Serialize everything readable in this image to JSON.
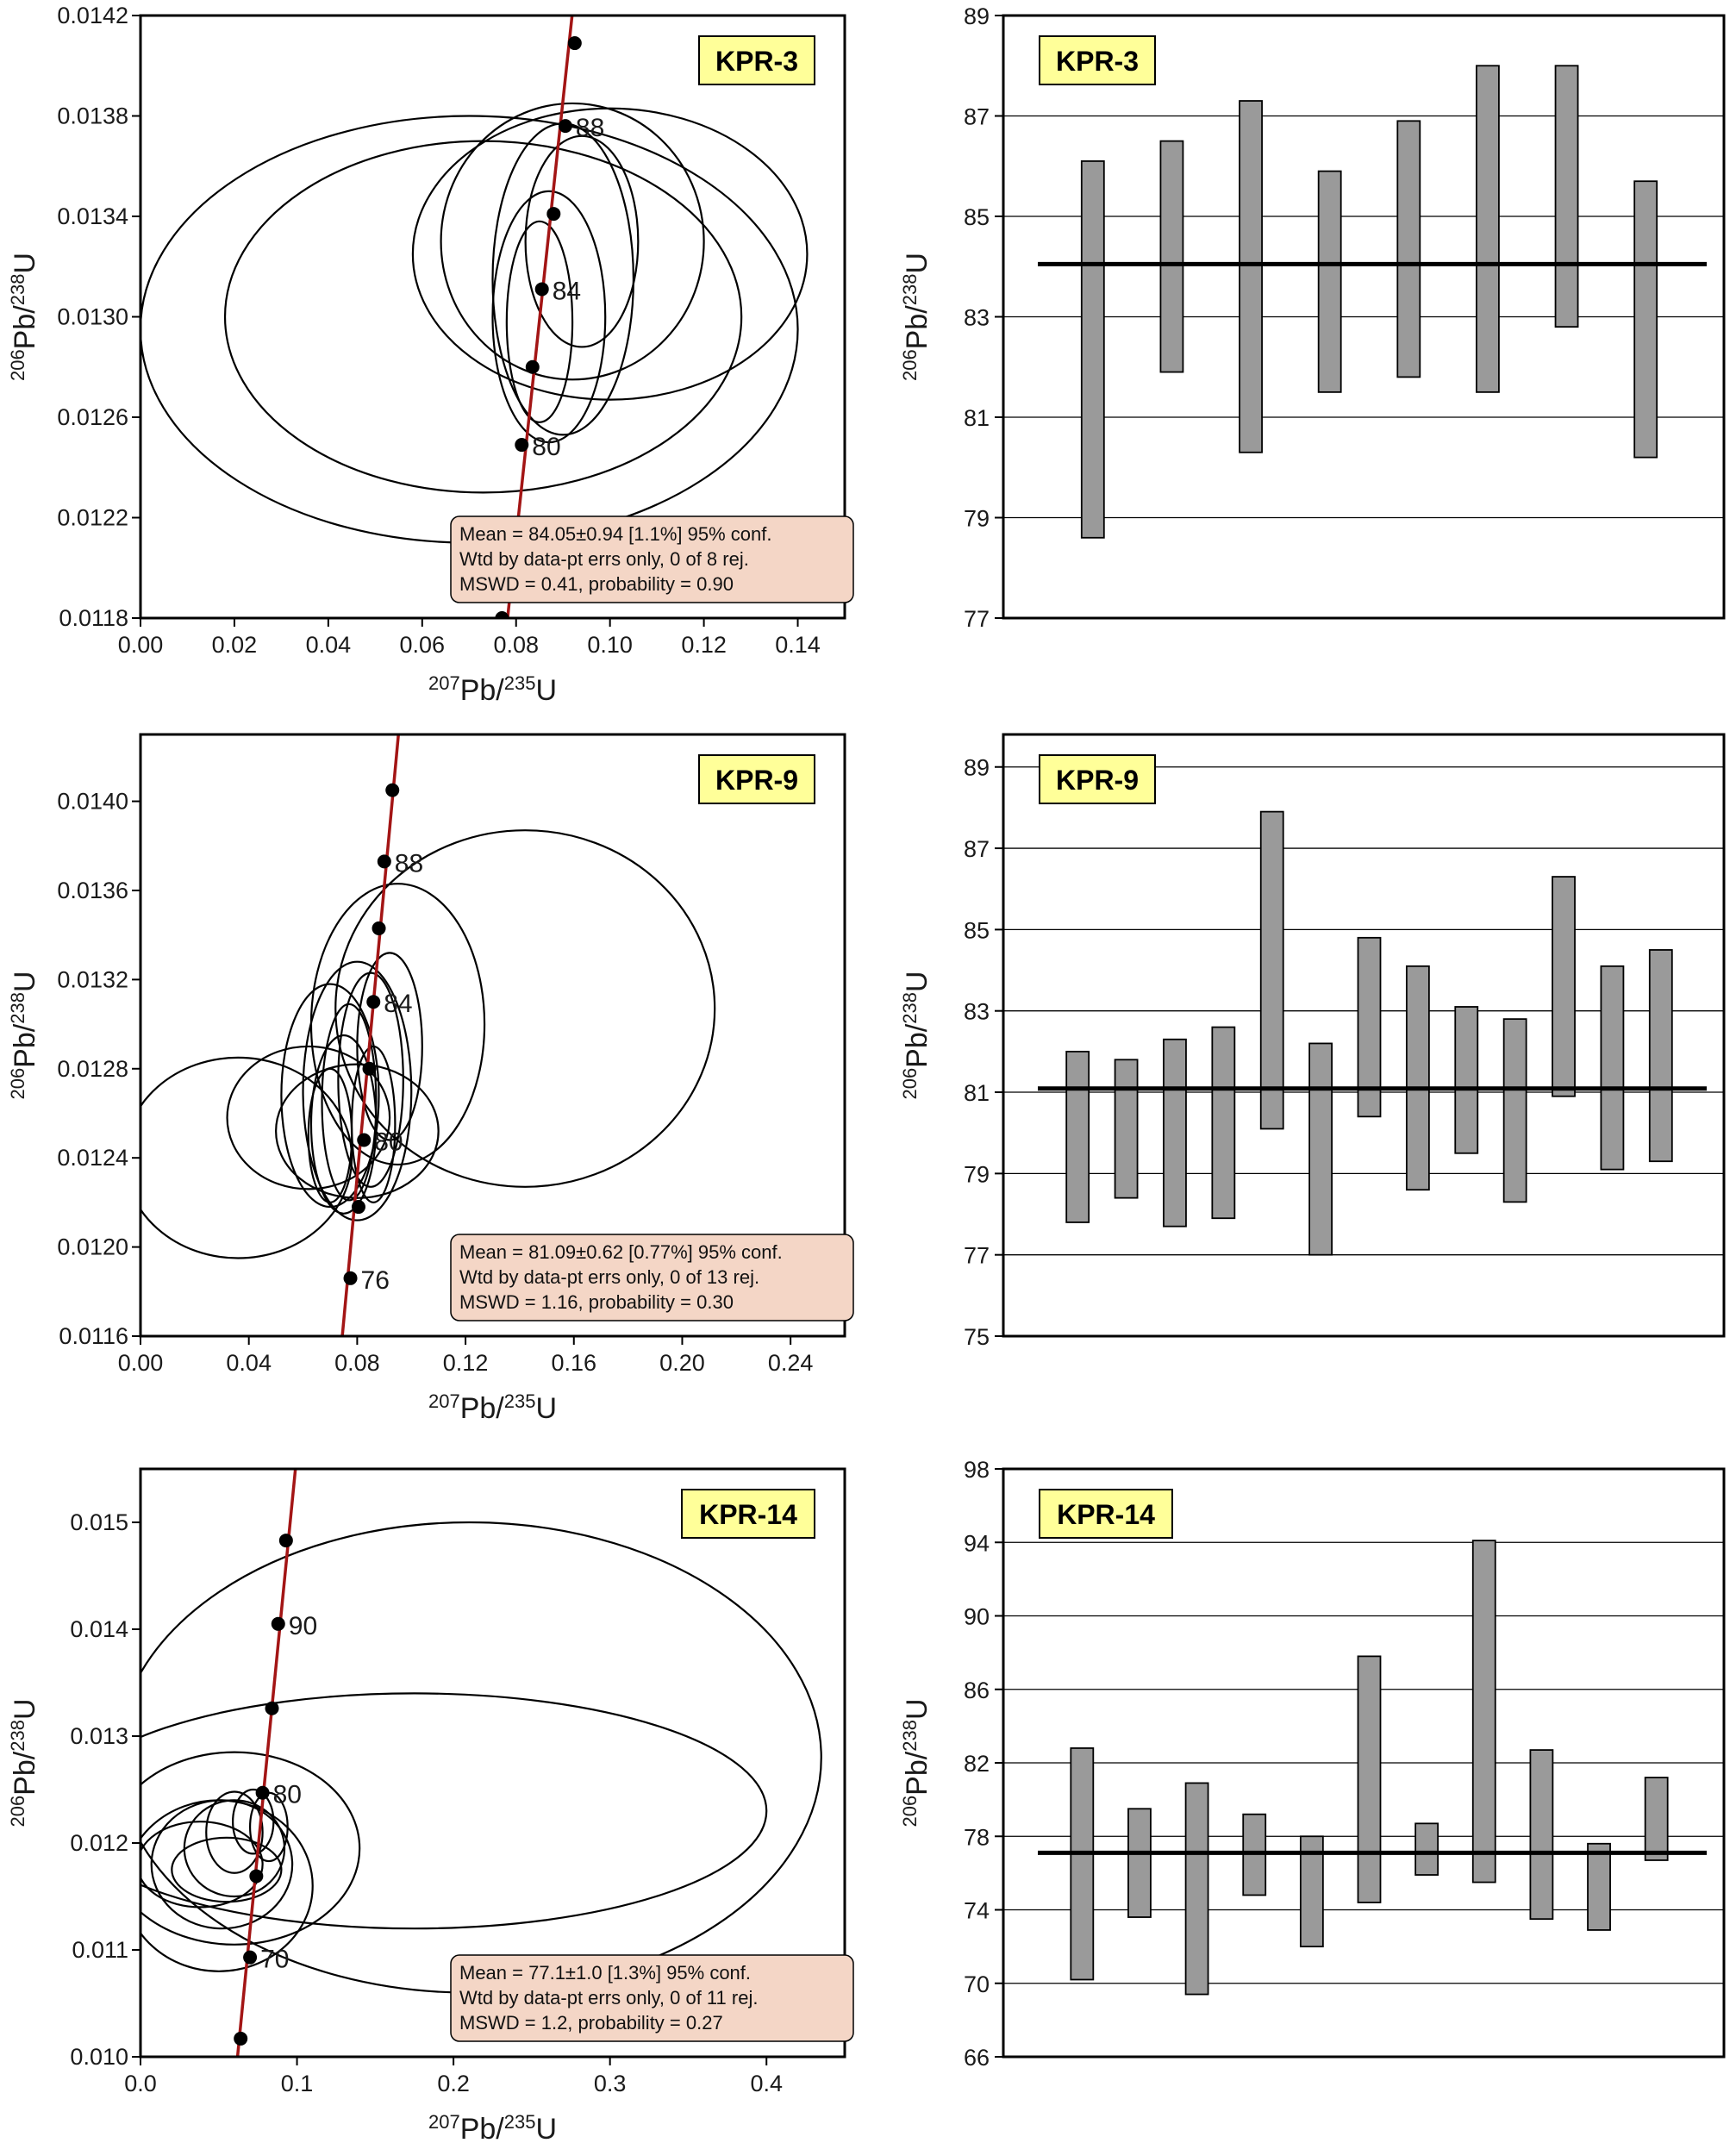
{
  "colors": {
    "concordia": "#a31515",
    "tag_bg": "#ffff99",
    "stats_bg": "#f4d6c6",
    "bar_fill": "#9a9a9a"
  },
  "panels": [
    {
      "tag": "KPR-3",
      "concordia": {
        "xlabel": {
          "mass1": "207",
          "el1": "Pb/",
          "mass2": "235",
          "el2": "U"
        },
        "ylabel": {
          "mass1": "206",
          "el1": "Pb/",
          "mass2": "238",
          "el2": "U"
        },
        "xlim": [
          0,
          0.15
        ],
        "ylim": [
          0.0118,
          0.0142
        ],
        "xticks": [
          0,
          0.02,
          0.04,
          0.06,
          0.08,
          0.1,
          0.12,
          0.14
        ],
        "xtick_labels": [
          "0.00",
          "0.02",
          "0.04",
          "0.06",
          "0.08",
          "0.10",
          "0.12",
          "0.14"
        ],
        "yticks": [
          0.0118,
          0.0122,
          0.0126,
          0.013,
          0.0134,
          0.0138,
          0.0142
        ],
        "ytick_labels": [
          "0.0118",
          "0.0122",
          "0.0126",
          "0.0130",
          "0.0134",
          "0.0138",
          "0.0142"
        ],
        "curve_points": [
          [
            0.0775,
            0.01168
          ],
          [
            0.0925,
            0.0143
          ]
        ],
        "age_markers": [
          {
            "x": 0.077,
            "y": 0.0118,
            "label": ""
          },
          {
            "x": 0.0812,
            "y": 0.01249,
            "label": "80"
          },
          {
            "x": 0.0835,
            "y": 0.0128,
            "label": ""
          },
          {
            "x": 0.0855,
            "y": 0.01311,
            "label": "84"
          },
          {
            "x": 0.088,
            "y": 0.01341,
            "label": ""
          },
          {
            "x": 0.0905,
            "y": 0.01376,
            "label": "88"
          },
          {
            "x": 0.0925,
            "y": 0.01409,
            "label": ""
          }
        ],
        "ellipses": [
          {
            "cx": 0.07,
            "cy": 0.01295,
            "rx": 0.07,
            "ry": 0.00085,
            "rot": 0
          },
          {
            "cx": 0.073,
            "cy": 0.013,
            "rx": 0.055,
            "ry": 0.0007,
            "rot": 0
          },
          {
            "cx": 0.1,
            "cy": 0.01325,
            "rx": 0.042,
            "ry": 0.00058,
            "rot": 0
          },
          {
            "cx": 0.092,
            "cy": 0.0133,
            "rx": 0.028,
            "ry": 0.00055,
            "rot": 0
          },
          {
            "cx": 0.09,
            "cy": 0.01315,
            "rx": 0.015,
            "ry": 0.00062,
            "rot": 0
          },
          {
            "cx": 0.087,
            "cy": 0.013,
            "rx": 0.012,
            "ry": 0.0005,
            "rot": 0
          },
          {
            "cx": 0.094,
            "cy": 0.0133,
            "rx": 0.012,
            "ry": 0.00042,
            "rot": 0
          },
          {
            "cx": 0.085,
            "cy": 0.01298,
            "rx": 0.007,
            "ry": 0.0004,
            "rot": 0
          }
        ],
        "stats": [
          "Mean = 84.05±0.94  [1.1%]  95% conf.",
          "Wtd by data-pt errs only, 0 of 8 rej.",
          "MSWD = 0.41, probability = 0.90"
        ]
      },
      "wm": {
        "ylabel": {
          "mass1": "206",
          "el1": "Pb/",
          "mass2": "238",
          "el2": "U"
        },
        "ylim": [
          77,
          89
        ],
        "yticks": [
          77,
          79,
          81,
          83,
          85,
          87,
          89
        ],
        "ytick_labels": [
          "77",
          "79",
          "81",
          "83",
          "85",
          "87",
          "89"
        ],
        "mean": 84.05,
        "bars": [
          [
            78.6,
            86.1
          ],
          [
            81.9,
            86.5
          ],
          [
            80.3,
            87.3
          ],
          [
            81.5,
            85.9
          ],
          [
            81.8,
            86.9
          ],
          [
            81.5,
            88.0
          ],
          [
            82.8,
            88.0
          ],
          [
            80.2,
            85.7
          ]
        ]
      }
    },
    {
      "tag": "KPR-9",
      "concordia": {
        "xlabel": {
          "mass1": "207",
          "el1": "Pb/",
          "mass2": "235",
          "el2": "U"
        },
        "ylabel": {
          "mass1": "206",
          "el1": "Pb/",
          "mass2": "238",
          "el2": "U"
        },
        "xlim": [
          0,
          0.26
        ],
        "ylim": [
          0.0116,
          0.0143
        ],
        "xticks": [
          0,
          0.04,
          0.08,
          0.12,
          0.16,
          0.2,
          0.24
        ],
        "xtick_labels": [
          "0.00",
          "0.04",
          "0.08",
          "0.12",
          "0.16",
          "0.20",
          "0.24"
        ],
        "yticks": [
          0.0116,
          0.012,
          0.0124,
          0.0128,
          0.0132,
          0.0136,
          0.014
        ],
        "ytick_labels": [
          "0.0116",
          "0.0120",
          "0.0124",
          "0.0128",
          "0.0132",
          "0.0136",
          "0.0140"
        ],
        "curve_points": [
          [
            0.0745,
            0.0116
          ],
          [
            0.096,
            0.0144
          ]
        ],
        "age_markers": [
          {
            "x": 0.0775,
            "y": 0.01186,
            "label": "76"
          },
          {
            "x": 0.0805,
            "y": 0.01218,
            "label": ""
          },
          {
            "x": 0.0825,
            "y": 0.01248,
            "label": "80"
          },
          {
            "x": 0.0845,
            "y": 0.0128,
            "label": ""
          },
          {
            "x": 0.086,
            "y": 0.0131,
            "label": "84"
          },
          {
            "x": 0.088,
            "y": 0.01343,
            "label": ""
          },
          {
            "x": 0.09,
            "y": 0.01373,
            "label": "88"
          },
          {
            "x": 0.093,
            "y": 0.01405,
            "label": ""
          }
        ],
        "ellipses": [
          {
            "cx": 0.142,
            "cy": 0.01307,
            "rx": 0.07,
            "ry": 0.0008,
            "rot": 0
          },
          {
            "cx": 0.095,
            "cy": 0.013,
            "rx": 0.032,
            "ry": 0.00063,
            "rot": 0
          },
          {
            "cx": 0.036,
            "cy": 0.0124,
            "rx": 0.042,
            "ry": 0.00045,
            "rot": 0
          },
          {
            "cx": 0.08,
            "cy": 0.01252,
            "rx": 0.03,
            "ry": 0.0003,
            "rot": 0
          },
          {
            "cx": 0.062,
            "cy": 0.01258,
            "rx": 0.03,
            "ry": 0.00032,
            "rot": 0
          },
          {
            "cx": 0.07,
            "cy": 0.01268,
            "rx": 0.018,
            "ry": 0.0005,
            "rot": 0
          },
          {
            "cx": 0.08,
            "cy": 0.0127,
            "rx": 0.02,
            "ry": 0.00058,
            "rot": 0
          },
          {
            "cx": 0.085,
            "cy": 0.01275,
            "rx": 0.012,
            "ry": 0.00048,
            "rot": 0
          },
          {
            "cx": 0.075,
            "cy": 0.01255,
            "rx": 0.012,
            "ry": 0.0004,
            "rot": 0
          },
          {
            "cx": 0.07,
            "cy": 0.0125,
            "rx": 0.008,
            "ry": 0.0003,
            "rot": 0
          },
          {
            "cx": 0.086,
            "cy": 0.01255,
            "rx": 0.008,
            "ry": 0.00035,
            "rot": 0
          },
          {
            "cx": 0.077,
            "cy": 0.01265,
            "rx": 0.01,
            "ry": 0.00044,
            "rot": 0
          },
          {
            "cx": 0.092,
            "cy": 0.0129,
            "rx": 0.012,
            "ry": 0.00042,
            "rot": 0
          }
        ],
        "stats": [
          "Mean = 81.09±0.62  [0.77%]  95% conf.",
          "Wtd by data-pt errs only, 0 of 13 rej.",
          "MSWD = 1.16, probability = 0.30"
        ]
      },
      "wm": {
        "ylabel": {
          "mass1": "206",
          "el1": "Pb/",
          "mass2": "238",
          "el2": "U"
        },
        "ylim": [
          75,
          89.8
        ],
        "yticks": [
          75,
          77,
          79,
          81,
          83,
          85,
          87,
          89
        ],
        "ytick_labels": [
          "75",
          "77",
          "79",
          "81",
          "83",
          "85",
          "87",
          "89"
        ],
        "mean": 81.09,
        "bars": [
          [
            77.8,
            82.0
          ],
          [
            78.4,
            81.8
          ],
          [
            77.7,
            82.3
          ],
          [
            77.9,
            82.6
          ],
          [
            80.1,
            87.9
          ],
          [
            77.0,
            82.2
          ],
          [
            80.4,
            84.8
          ],
          [
            78.6,
            84.1
          ],
          [
            79.5,
            83.1
          ],
          [
            78.3,
            82.8
          ],
          [
            80.9,
            86.3
          ],
          [
            79.1,
            84.1
          ],
          [
            79.3,
            84.5
          ]
        ]
      }
    },
    {
      "tag": "KPR-14",
      "concordia": {
        "xlabel": {
          "mass1": "207",
          "el1": "Pb/",
          "mass2": "235",
          "el2": "U"
        },
        "ylabel": {
          "mass1": "206",
          "el1": "Pb/",
          "mass2": "238",
          "el2": "U"
        },
        "xlim": [
          0,
          0.45
        ],
        "ylim": [
          0.01,
          0.0155
        ],
        "xticks": [
          0,
          0.1,
          0.2,
          0.3,
          0.4
        ],
        "xtick_labels": [
          "0.0",
          "0.1",
          "0.2",
          "0.3",
          "0.4"
        ],
        "yticks": [
          0.01,
          0.011,
          0.012,
          0.013,
          0.014,
          0.015
        ],
        "ytick_labels": [
          "0.010",
          "0.011",
          "0.012",
          "0.013",
          "0.014",
          "0.015"
        ],
        "curve_points": [
          [
            0.062,
            0.01
          ],
          [
            0.099,
            0.0155
          ]
        ],
        "age_markers": [
          {
            "x": 0.064,
            "y": 0.01017,
            "label": ""
          },
          {
            "x": 0.07,
            "y": 0.01093,
            "label": "70"
          },
          {
            "x": 0.074,
            "y": 0.01169,
            "label": ""
          },
          {
            "x": 0.078,
            "y": 0.01247,
            "label": "80"
          },
          {
            "x": 0.084,
            "y": 0.01326,
            "label": ""
          },
          {
            "x": 0.088,
            "y": 0.01405,
            "label": "90"
          },
          {
            "x": 0.093,
            "y": 0.01483,
            "label": ""
          }
        ],
        "ellipses": [
          {
            "cx": 0.21,
            "cy": 0.0128,
            "rx": 0.225,
            "ry": 0.0022,
            "rot": 0
          },
          {
            "cx": 0.175,
            "cy": 0.0123,
            "rx": 0.225,
            "ry": 0.0011,
            "rot": 0
          },
          {
            "cx": 0.06,
            "cy": 0.01195,
            "rx": 0.08,
            "ry": 0.0009,
            "rot": 0
          },
          {
            "cx": 0.05,
            "cy": 0.0116,
            "rx": 0.06,
            "ry": 0.0008,
            "rot": 0
          },
          {
            "cx": 0.052,
            "cy": 0.0118,
            "rx": 0.045,
            "ry": 0.0006,
            "rot": 0
          },
          {
            "cx": 0.038,
            "cy": 0.0118,
            "rx": 0.04,
            "ry": 0.0004,
            "rot": 0
          },
          {
            "cx": 0.06,
            "cy": 0.01195,
            "rx": 0.032,
            "ry": 0.00045,
            "rot": 0
          },
          {
            "cx": 0.055,
            "cy": 0.01175,
            "rx": 0.035,
            "ry": 0.0003,
            "rot": 0
          },
          {
            "cx": 0.06,
            "cy": 0.0121,
            "rx": 0.018,
            "ry": 0.00038,
            "rot": 0
          },
          {
            "cx": 0.072,
            "cy": 0.0122,
            "rx": 0.013,
            "ry": 0.0003,
            "rot": 0
          },
          {
            "cx": 0.082,
            "cy": 0.01215,
            "rx": 0.012,
            "ry": 0.00032,
            "rot": 0
          }
        ],
        "stats": [
          "Mean = 77.1±1.0  [1.3%]  95% conf.",
          "Wtd by data-pt errs only, 0 of 11 rej.",
          "MSWD = 1.2, probability = 0.27"
        ]
      },
      "wm": {
        "ylabel": {
          "mass1": "206",
          "el1": "Pb/",
          "mass2": "238",
          "el2": "U"
        },
        "ylim": [
          66,
          98
        ],
        "yticks": [
          66,
          70,
          74,
          78,
          82,
          86,
          90,
          94,
          98
        ],
        "ytick_labels": [
          "66",
          "70",
          "74",
          "78",
          "82",
          "86",
          "90",
          "94",
          "98"
        ],
        "mean": 77.1,
        "bars": [
          [
            70.2,
            82.8
          ],
          [
            73.6,
            79.5
          ],
          [
            69.4,
            80.9
          ],
          [
            74.8,
            79.2
          ],
          [
            72.0,
            78.0
          ],
          [
            74.4,
            87.8
          ],
          [
            75.9,
            78.7
          ],
          [
            75.5,
            94.1
          ],
          [
            73.5,
            82.7
          ],
          [
            72.9,
            77.6
          ],
          [
            76.7,
            81.2
          ]
        ]
      }
    }
  ],
  "chart_data": [
    {
      "type": "scatter",
      "title": "KPR-3",
      "xlabel": "207Pb/235U",
      "ylabel": "206Pb/238U",
      "xlim": [
        0,
        0.15
      ],
      "ylim": [
        0.0118,
        0.0142
      ],
      "series": [
        {
          "name": "concordia",
          "x": [
            0.077,
            0.0812,
            0.0835,
            0.0855,
            0.088,
            0.0905,
            0.0925
          ],
          "y": [
            0.0118,
            0.01249,
            0.0128,
            0.01311,
            0.01341,
            0.01376,
            0.01409
          ]
        }
      ],
      "annotations": [
        "80",
        "84",
        "88",
        "Mean = 84.05±0.94  [1.1%]  95% conf.",
        "Wtd by data-pt errs only, 0 of 8 rej.",
        "MSWD = 0.41, probability = 0.90"
      ]
    },
    {
      "type": "bar",
      "title": "KPR-3",
      "ylabel": "206Pb/238U",
      "ylim": [
        77,
        89
      ],
      "mean": 84.05,
      "low": [
        78.6,
        81.9,
        80.3,
        81.5,
        81.8,
        81.5,
        82.8,
        80.2
      ],
      "high": [
        86.1,
        86.5,
        87.3,
        85.9,
        86.9,
        88.0,
        88.0,
        85.7
      ]
    },
    {
      "type": "scatter",
      "title": "KPR-9",
      "xlabel": "207Pb/235U",
      "ylabel": "206Pb/238U",
      "xlim": [
        0,
        0.26
      ],
      "ylim": [
        0.0116,
        0.0143
      ],
      "series": [
        {
          "name": "concordia",
          "x": [
            0.0775,
            0.0805,
            0.0825,
            0.0845,
            0.086,
            0.088,
            0.09,
            0.093
          ],
          "y": [
            0.01186,
            0.01218,
            0.01248,
            0.0128,
            0.0131,
            0.01343,
            0.01373,
            0.01405
          ]
        }
      ],
      "annotations": [
        "76",
        "80",
        "84",
        "88",
        "Mean = 81.09±0.62  [0.77%]  95% conf.",
        "Wtd by data-pt errs only, 0 of 13 rej.",
        "MSWD = 1.16, probability = 0.30"
      ]
    },
    {
      "type": "bar",
      "title": "KPR-9",
      "ylabel": "206Pb/238U",
      "ylim": [
        75,
        89.8
      ],
      "mean": 81.09,
      "low": [
        77.8,
        78.4,
        77.7,
        77.9,
        80.1,
        77.0,
        80.4,
        78.6,
        79.5,
        78.3,
        80.9,
        79.1,
        79.3
      ],
      "high": [
        82.0,
        81.8,
        82.3,
        82.6,
        87.9,
        82.2,
        84.8,
        84.1,
        83.1,
        82.8,
        86.3,
        84.1,
        84.5
      ]
    },
    {
      "type": "scatter",
      "title": "KPR-14",
      "xlabel": "207Pb/235U",
      "ylabel": "206Pb/238U",
      "xlim": [
        0,
        0.45
      ],
      "ylim": [
        0.01,
        0.0155
      ],
      "series": [
        {
          "name": "concordia",
          "x": [
            0.064,
            0.07,
            0.074,
            0.078,
            0.084,
            0.088,
            0.093
          ],
          "y": [
            0.01017,
            0.01093,
            0.01169,
            0.01247,
            0.01326,
            0.01405,
            0.01483
          ]
        }
      ],
      "annotations": [
        "70",
        "80",
        "90",
        "Mean = 77.1±1.0  [1.3%]  95% conf.",
        "Wtd by data-pt errs only, 0 of 11 rej.",
        "MSWD = 1.2, probability = 0.27"
      ]
    },
    {
      "type": "bar",
      "title": "KPR-14",
      "ylabel": "206Pb/238U",
      "ylim": [
        66,
        98
      ],
      "mean": 77.1,
      "low": [
        70.2,
        73.6,
        69.4,
        74.8,
        72.0,
        74.4,
        75.9,
        75.5,
        73.5,
        72.9,
        76.7
      ],
      "high": [
        82.8,
        79.5,
        80.9,
        79.2,
        78.0,
        87.8,
        78.7,
        94.1,
        82.7,
        77.6,
        81.2
      ]
    }
  ]
}
